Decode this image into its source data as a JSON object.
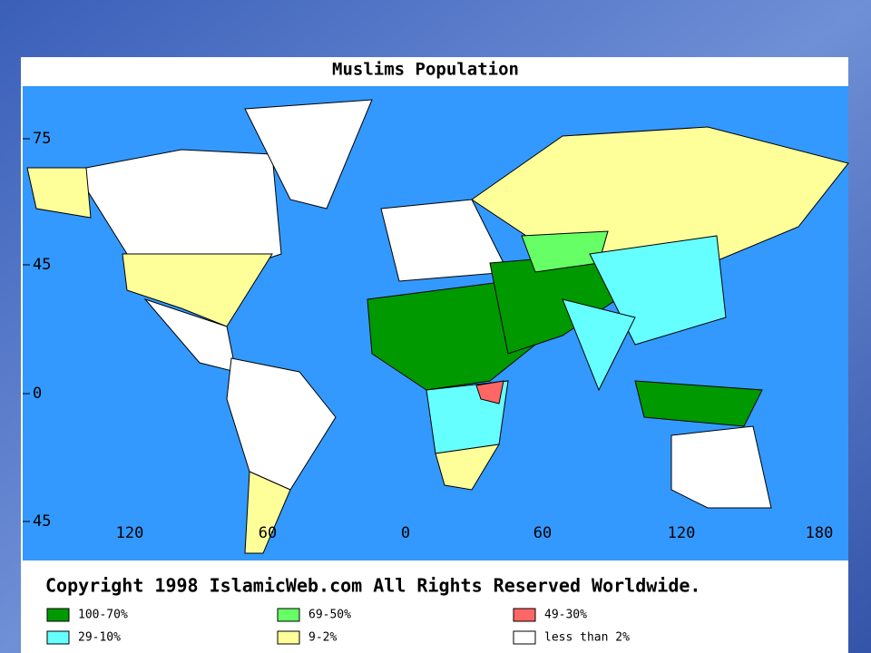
{
  "map": {
    "title": "Muslims Population",
    "latitude_labels": [
      "75",
      "45",
      "0",
      "45"
    ],
    "longitude_labels": [
      "120",
      "60",
      "0",
      "60",
      "120",
      "180"
    ],
    "copyright": "Copyright 1998 IslamicWeb.com All Rights Reserved Worldwide.",
    "legend": [
      {
        "label": "100-70%",
        "color": "#009900"
      },
      {
        "label": "69-50%",
        "color": "#66ff66"
      },
      {
        "label": "49-30%",
        "color": "#ff6666"
      },
      {
        "label": "29-10%",
        "color": "#66ffff"
      },
      {
        "label": "9-2%",
        "color": "#ffff99"
      },
      {
        "label": "less than 2%",
        "color": "#ffffff"
      }
    ]
  }
}
